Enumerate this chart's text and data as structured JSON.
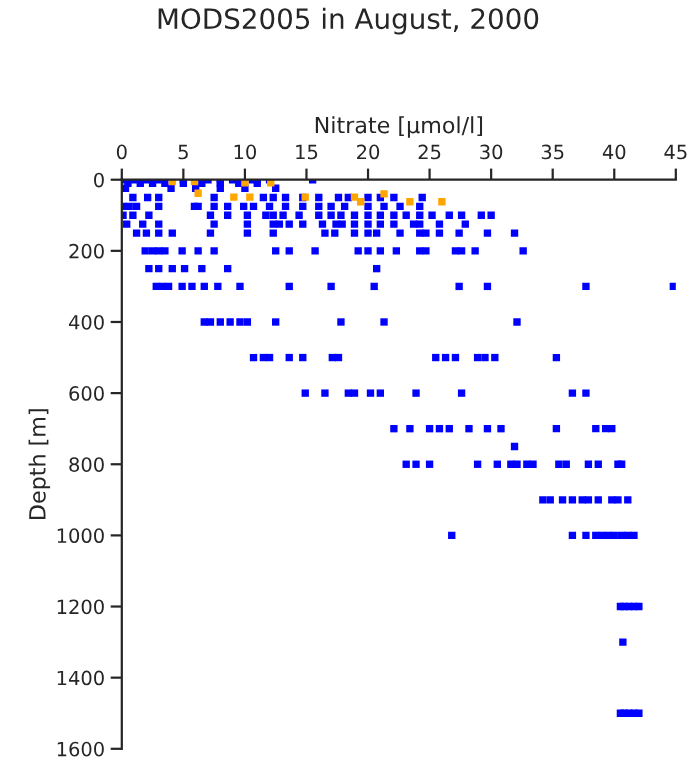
{
  "chart_data": {
    "type": "scatter",
    "title": "MODS2005 in August, 2000",
    "xlabel": "Nitrate [µmol/l]",
    "ylabel": "Depth [m]",
    "xlim": [
      0,
      45
    ],
    "xticks": [
      0,
      5,
      10,
      15,
      20,
      25,
      30,
      35,
      40,
      45
    ],
    "ylim": [
      1600,
      0
    ],
    "yticks": [
      0,
      200,
      400,
      600,
      800,
      1000,
      1200,
      1400,
      1600
    ],
    "marker": "square",
    "grid": false,
    "series": [
      {
        "color": "#0000ff",
        "x": [
          0.2,
          1,
          2,
          3,
          5,
          7,
          8,
          9,
          10.6,
          11,
          12,
          15.5,
          0.5,
          1.5,
          2.5,
          3.5,
          5,
          6.5,
          8,
          9.5,
          11,
          0.3,
          4,
          6,
          8,
          10,
          12.5,
          0.9,
          2.1,
          3.0,
          7.5,
          11.5,
          12.3,
          13.3,
          14.7,
          16.0,
          17.6,
          18.4,
          20.0,
          21.0,
          22.1,
          24.4,
          0.1,
          0.6,
          1.2,
          3.0,
          5.9,
          6.2,
          7.5,
          8.6,
          9.9,
          10.7,
          12.0,
          13.3,
          14.7,
          16.0,
          17.0,
          18.1,
          20.0,
          21.3,
          22.6,
          24.2,
          0.1,
          0.9,
          2.2,
          7.2,
          8.6,
          10.2,
          11.7,
          12.3,
          13.1,
          14.4,
          16.0,
          17.0,
          17.8,
          18.9,
          20.0,
          21.0,
          22.1,
          23.1,
          24.2,
          25.2,
          26.6,
          27.6,
          29.2,
          30.0,
          0.4,
          1.7,
          3.0,
          7.5,
          10.2,
          12.3,
          12.8,
          13.6,
          14.7,
          16.3,
          17.4,
          17.9,
          18.9,
          20.0,
          21.0,
          22.1,
          23.7,
          24.2,
          25.8,
          27.9,
          1.2,
          2.0,
          3.0,
          4.1,
          7.2,
          10.2,
          12.3,
          16.5,
          17.3,
          18.9,
          20.0,
          20.7,
          22.6,
          24.2,
          24.7,
          25.8,
          27.4,
          29.7,
          31.9,
          1.9,
          2.5,
          3.0,
          3.5,
          4.9,
          6.2,
          7.5,
          12.5,
          13.6,
          15.7,
          19.2,
          20.0,
          21.0,
          22.3,
          24.2,
          24.7,
          27.1,
          27.6,
          28.7,
          32.6,
          2.2,
          3.0,
          4.1,
          5.1,
          6.5,
          8.6,
          20.7,
          2.8,
          3.3,
          3.8,
          4.9,
          5.7,
          6.7,
          7.8,
          9.6,
          13.6,
          17.0,
          20.5,
          27.4,
          29.7,
          37.7,
          44.8,
          6.7,
          7.2,
          8.0,
          8.8,
          9.6,
          10.2,
          12.5,
          17.8,
          21.3,
          32.1,
          10.7,
          11.5,
          12.0,
          13.6,
          14.7,
          17.1,
          17.6,
          25.5,
          26.3,
          27.1,
          28.9,
          29.5,
          30.3,
          35.3,
          14.9,
          16.5,
          18.4,
          18.9,
          20.2,
          21.0,
          23.9,
          27.6,
          36.6,
          37.7,
          22.1,
          23.4,
          25.0,
          25.8,
          26.6,
          28.2,
          29.7,
          30.8,
          35.3,
          38.5,
          39.3,
          39.8,
          31.9,
          23.1,
          23.9,
          25.0,
          28.9,
          30.5,
          31.6,
          32.1,
          32.9,
          33.4,
          35.5,
          36.1,
          37.9,
          38.7,
          40.3,
          40.6,
          34.2,
          34.8,
          35.8,
          36.6,
          37.4,
          37.9,
          38.7,
          39.8,
          40.3,
          41.1,
          26.8,
          36.6,
          37.7,
          38.5,
          39.0,
          39.5,
          40.0,
          40.6,
          41.1,
          41.6,
          40.5,
          40.8,
          41.2,
          41.6,
          42.0,
          40.7,
          40.5,
          40.8,
          41.2,
          41.6,
          42.0
        ],
        "values": [
          0,
          0,
          0,
          0,
          0,
          0,
          0,
          0,
          0,
          0,
          0,
          0,
          10,
          10,
          10,
          10,
          10,
          10,
          10,
          10,
          10,
          24,
          24,
          24,
          24,
          24,
          24,
          50,
          50,
          50,
          50,
          50,
          50,
          50,
          50,
          50,
          50,
          50,
          50,
          50,
          50,
          50,
          75,
          75,
          75,
          75,
          75,
          75,
          75,
          75,
          75,
          75,
          75,
          75,
          75,
          75,
          75,
          75,
          75,
          75,
          75,
          75,
          100,
          100,
          100,
          100,
          100,
          100,
          100,
          100,
          100,
          100,
          100,
          100,
          100,
          100,
          100,
          100,
          100,
          100,
          100,
          100,
          100,
          100,
          100,
          100,
          125,
          125,
          125,
          125,
          125,
          125,
          125,
          125,
          125,
          125,
          125,
          125,
          125,
          125,
          125,
          125,
          125,
          125,
          125,
          125,
          150,
          150,
          150,
          150,
          150,
          150,
          150,
          150,
          150,
          150,
          150,
          150,
          150,
          150,
          150,
          150,
          150,
          150,
          150,
          200,
          200,
          200,
          200,
          200,
          200,
          200,
          200,
          200,
          200,
          200,
          200,
          200,
          200,
          200,
          200,
          200,
          200,
          200,
          200,
          250,
          250,
          250,
          250,
          250,
          250,
          250,
          300,
          300,
          300,
          300,
          300,
          300,
          300,
          300,
          300,
          300,
          300,
          300,
          300,
          300,
          300,
          400,
          400,
          400,
          400,
          400,
          400,
          400,
          400,
          400,
          400,
          500,
          500,
          500,
          500,
          500,
          500,
          500,
          500,
          500,
          500,
          500,
          500,
          500,
          500,
          600,
          600,
          600,
          600,
          600,
          600,
          600,
          600,
          600,
          600,
          700,
          700,
          700,
          700,
          700,
          700,
          700,
          700,
          700,
          700,
          700,
          700,
          750,
          800,
          800,
          800,
          800,
          800,
          800,
          800,
          800,
          800,
          800,
          800,
          800,
          800,
          800,
          800,
          900,
          900,
          900,
          900,
          900,
          900,
          900,
          900,
          900,
          900,
          1000,
          1000,
          1000,
          1000,
          1000,
          1000,
          1000,
          1000,
          1000,
          1000,
          1200,
          1200,
          1200,
          1200,
          1200,
          1300,
          1500,
          1500,
          1500,
          1500,
          1500
        ]
      },
      {
        "color": "#ffa500",
        "x": [
          4.1,
          5.9,
          6.2,
          9.1,
          10,
          10.4,
          12.1,
          14.9,
          18.9,
          19.4,
          21.3,
          23.4,
          26.0
        ],
        "values": [
          5,
          5,
          38,
          49,
          9,
          49,
          9,
          49,
          49,
          62,
          40,
          62,
          62
        ]
      }
    ]
  }
}
